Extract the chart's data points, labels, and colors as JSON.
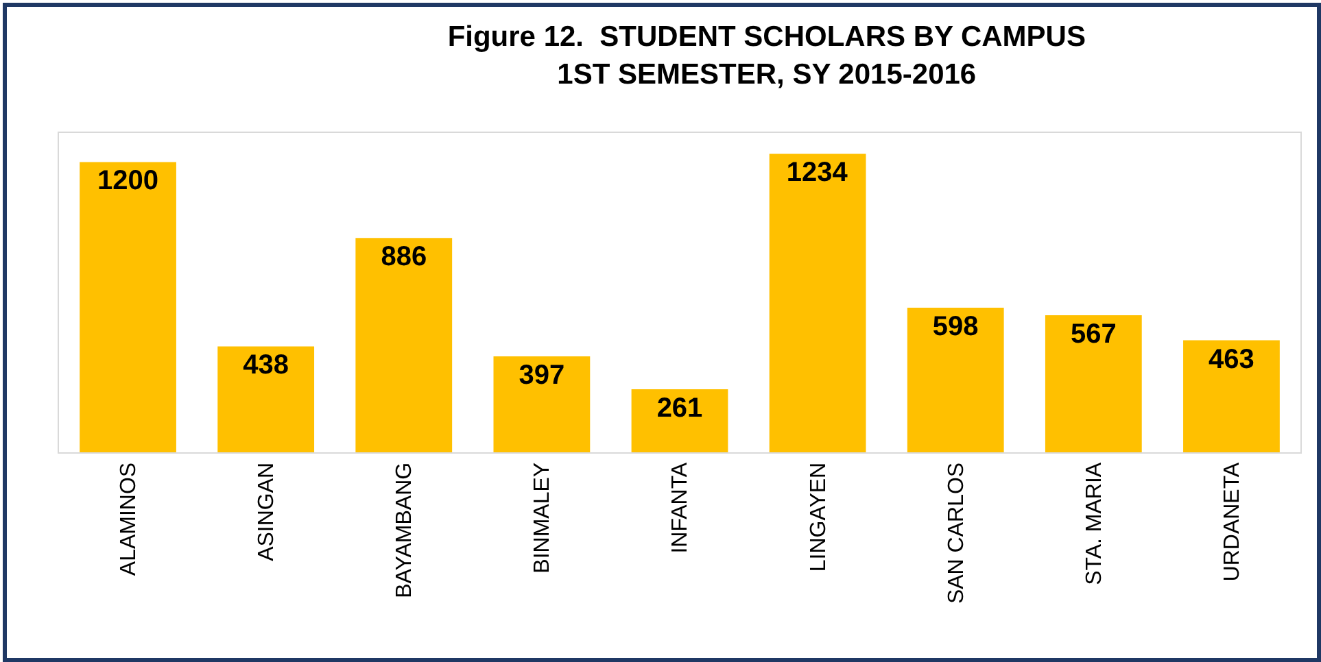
{
  "chart_data": {
    "type": "bar",
    "title": "Figure 12.  STUDENT SCHOLARS BY CAMPUS\n1ST SEMESTER, SY 2015-2016",
    "categories": [
      "ALAMINOS",
      "ASINGAN",
      "BAYAMBANG",
      "BINMALEY",
      "INFANTA",
      "LINGAYEN",
      "SAN CARLOS",
      "STA. MARIA",
      "URDANETA"
    ],
    "values": [
      1200,
      438,
      886,
      397,
      261,
      1234,
      598,
      567,
      463
    ],
    "color": "#ffc000",
    "data_labels": true,
    "grid": false
  }
}
